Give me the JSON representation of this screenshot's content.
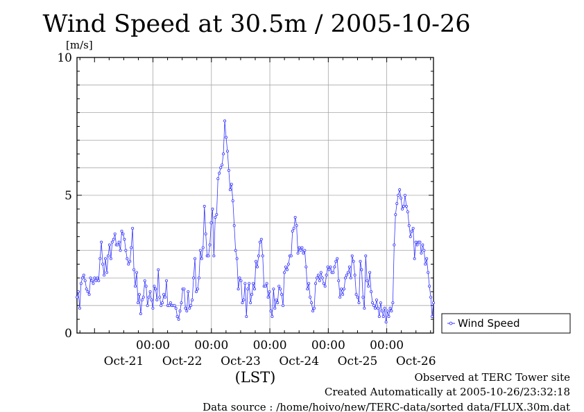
{
  "chart_data": {
    "type": "line",
    "title": "Wind Speed at 30.5m / 2005-10-26",
    "ylabel": "[m/s]",
    "xlabel": "(LST)",
    "ylim": [
      0,
      10
    ],
    "y_ticks": [
      "0",
      "5",
      "10"
    ],
    "x_range_days": [
      -0.3,
      5.8
    ],
    "x_ticks": [
      {
        "pos": 1,
        "time": "00:00",
        "date": "Oct-22"
      },
      {
        "pos": 2,
        "time": "00:00",
        "date": "Oct-23"
      },
      {
        "pos": 3,
        "time": "00:00",
        "date": "Oct-24"
      },
      {
        "pos": 4,
        "time": "00:00",
        "date": "Oct-25"
      },
      {
        "pos": 5,
        "time": "00:00",
        "date": "Oct-26"
      }
    ],
    "first_date_label": "Oct-21",
    "grid": true,
    "legend_position": "right",
    "series": [
      {
        "name": "Wind Speed",
        "color": "#3333ff",
        "values": [
          1.3,
          1.5,
          0.9,
          1.8,
          2.0,
          2.1,
          1.9,
          1.6,
          1.5,
          1.4,
          2.0,
          1.9,
          1.8,
          2.0,
          1.9,
          2.0,
          1.9,
          2.7,
          3.3,
          2.5,
          2.1,
          2.7,
          2.2,
          2.8,
          3.2,
          2.7,
          3.3,
          3.4,
          3.6,
          3.2,
          3.2,
          3.3,
          3.0,
          3.7,
          3.6,
          3.4,
          3.0,
          2.7,
          2.5,
          2.6,
          3.1,
          3.8,
          2.3,
          1.7,
          2.2,
          1.1,
          1.4,
          0.7,
          1.2,
          1.3,
          1.9,
          1.7,
          1.0,
          1.3,
          1.5,
          1.2,
          0.9,
          1.7,
          1.6,
          1.2,
          2.3,
          1.3,
          1.0,
          1.1,
          1.4,
          1.3,
          1.9,
          1.0,
          1.0,
          1.1,
          1.0,
          1.0,
          1.0,
          0.9,
          0.6,
          0.5,
          0.8,
          1.1,
          1.6,
          1.6,
          0.9,
          0.8,
          1.5,
          0.9,
          1.0,
          1.2,
          2.0,
          2.7,
          1.5,
          1.6,
          2.0,
          3.0,
          2.7,
          3.1,
          4.6,
          3.6,
          2.8,
          2.8,
          3.2,
          4.0,
          4.5,
          2.8,
          4.2,
          4.3,
          5.6,
          5.8,
          6.0,
          6.1,
          6.5,
          7.7,
          7.1,
          6.6,
          5.9,
          5.2,
          5.4,
          4.8,
          3.9,
          3.0,
          2.7,
          1.6,
          2.0,
          1.9,
          1.1,
          1.2,
          1.8,
          0.6,
          1.6,
          1.8,
          1.1,
          1.4,
          1.8,
          1.6,
          2.6,
          2.4,
          2.8,
          3.3,
          3.4,
          2.8,
          1.7,
          1.7,
          1.8,
          1.3,
          1.5,
          0.8,
          0.6,
          1.6,
          0.9,
          1.2,
          1.1,
          1.7,
          1.6,
          1.4,
          1.0,
          2.2,
          2.4,
          2.3,
          2.5,
          2.8,
          2.8,
          3.7,
          3.8,
          4.2,
          3.9,
          2.9,
          3.1,
          3.0,
          3.1,
          2.9,
          3.0,
          2.4,
          1.6,
          1.8,
          1.3,
          1.1,
          0.8,
          0.9,
          1.8,
          2.0,
          2.1,
          1.9,
          2.2,
          2.0,
          1.8,
          1.7,
          2.1,
          2.4,
          2.3,
          2.4,
          2.2,
          2.2,
          2.4,
          2.6,
          2.7,
          1.9,
          1.3,
          1.6,
          1.4,
          1.6,
          2.0,
          2.1,
          2.2,
          2.4,
          2.0,
          2.8,
          2.6,
          2.1,
          1.4,
          1.3,
          1.1,
          2.6,
          2.3,
          1.3,
          0.9,
          2.8,
          1.9,
          1.7,
          2.2,
          1.5,
          1.1,
          1.0,
          0.9,
          1.2,
          0.9,
          0.6,
          1.1,
          0.8,
          0.6,
          0.9,
          0.4,
          0.8,
          0.6,
          0.9,
          0.8,
          1.1,
          3.2,
          4.3,
          4.7,
          5.0,
          5.2,
          4.9,
          4.5,
          4.6,
          5.0,
          4.6,
          4.4,
          3.9,
          3.5,
          3.7,
          3.8,
          2.7,
          3.3,
          3.2,
          3.3,
          3.3,
          2.9,
          3.2,
          3.0,
          2.5,
          2.7,
          2.2,
          1.7,
          1.3,
          0.6,
          1.1
        ]
      }
    ]
  },
  "footer": {
    "line1": "Observed at TERC Tower site",
    "line2": "Created Automatically at 2005-10-26/23:32:18",
    "line3": "Data source : /home/hoivo/new/TERC-data/sorted  data/FLUX.30m.dat"
  }
}
